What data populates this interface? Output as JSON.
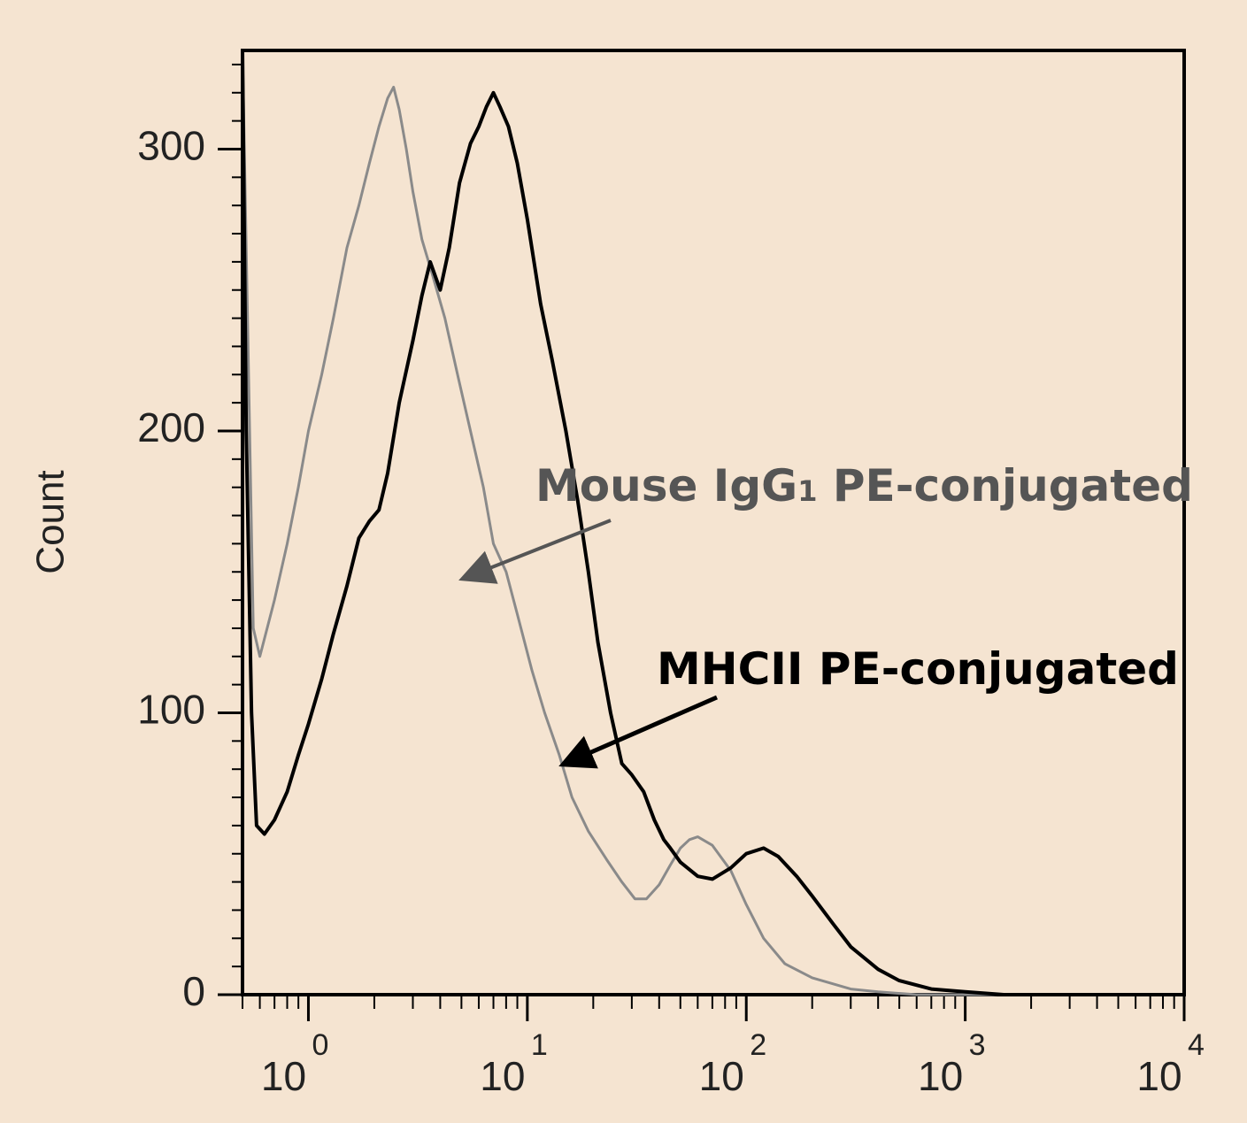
{
  "chart_data": {
    "type": "line",
    "title": "",
    "xlabel": "",
    "ylabel": "Count",
    "x_scale": "log",
    "xlim": [
      0.5,
      10000
    ],
    "ylim": [
      0,
      335
    ],
    "y_ticks": [
      0,
      100,
      200,
      300
    ],
    "x_ticks": [
      {
        "value": 1,
        "base": "10",
        "exp": "0"
      },
      {
        "value": 10,
        "base": "10",
        "exp": "1"
      },
      {
        "value": 100,
        "base": "10",
        "exp": "2"
      },
      {
        "value": 1000,
        "base": "10",
        "exp": "3"
      },
      {
        "value": 10000,
        "base": "10",
        "exp": "4"
      }
    ],
    "series": [
      {
        "name": "Mouse IgG1 PE-conjugated",
        "label_main": "Mouse IgG",
        "label_sub": "1",
        "label_rest": " PE-conjugated",
        "color": "#8a8a8a",
        "points": [
          [
            0.5,
            335
          ],
          [
            0.53,
            230
          ],
          [
            0.56,
            130
          ],
          [
            0.6,
            120
          ],
          [
            0.7,
            140
          ],
          [
            0.8,
            160
          ],
          [
            0.9,
            180
          ],
          [
            1.0,
            200
          ],
          [
            1.15,
            220
          ],
          [
            1.3,
            240
          ],
          [
            1.5,
            265
          ],
          [
            1.7,
            280
          ],
          [
            1.9,
            295
          ],
          [
            2.1,
            308
          ],
          [
            2.3,
            318
          ],
          [
            2.45,
            322
          ],
          [
            2.6,
            314
          ],
          [
            2.8,
            300
          ],
          [
            3.0,
            285
          ],
          [
            3.3,
            268
          ],
          [
            3.7,
            255
          ],
          [
            4.2,
            240
          ],
          [
            4.8,
            220
          ],
          [
            5.5,
            200
          ],
          [
            6.3,
            180
          ],
          [
            7.0,
            160
          ],
          [
            8.0,
            150
          ],
          [
            9.0,
            135
          ],
          [
            10.5,
            115
          ],
          [
            12,
            100
          ],
          [
            14,
            85
          ],
          [
            16,
            70
          ],
          [
            19,
            58
          ],
          [
            23,
            48
          ],
          [
            27,
            40
          ],
          [
            31,
            34
          ],
          [
            35,
            34
          ],
          [
            40,
            39
          ],
          [
            45,
            46
          ],
          [
            50,
            52
          ],
          [
            55,
            55
          ],
          [
            60,
            56
          ],
          [
            70,
            53
          ],
          [
            85,
            44
          ],
          [
            100,
            32
          ],
          [
            120,
            20
          ],
          [
            150,
            11
          ],
          [
            200,
            6
          ],
          [
            300,
            2
          ],
          [
            400,
            1
          ],
          [
            600,
            0
          ],
          [
            10000,
            0
          ]
        ]
      },
      {
        "name": "MHCII PE-conjugated",
        "label_main": "MHCII PE-conjugated",
        "color": "#000000",
        "points": [
          [
            0.5,
            335
          ],
          [
            0.52,
            200
          ],
          [
            0.55,
            100
          ],
          [
            0.58,
            60
          ],
          [
            0.63,
            57
          ],
          [
            0.7,
            62
          ],
          [
            0.8,
            72
          ],
          [
            0.9,
            85
          ],
          [
            1.0,
            96
          ],
          [
            1.15,
            112
          ],
          [
            1.3,
            128
          ],
          [
            1.5,
            145
          ],
          [
            1.7,
            162
          ],
          [
            1.9,
            168
          ],
          [
            2.1,
            172
          ],
          [
            2.3,
            185
          ],
          [
            2.6,
            210
          ],
          [
            3.0,
            232
          ],
          [
            3.3,
            248
          ],
          [
            3.6,
            260
          ],
          [
            4.0,
            250
          ],
          [
            4.4,
            265
          ],
          [
            4.9,
            288
          ],
          [
            5.5,
            302
          ],
          [
            6.0,
            308
          ],
          [
            6.5,
            315
          ],
          [
            7.0,
            320
          ],
          [
            7.5,
            315
          ],
          [
            8.2,
            308
          ],
          [
            9.0,
            295
          ],
          [
            10.0,
            275
          ],
          [
            11.5,
            245
          ],
          [
            13,
            225
          ],
          [
            15,
            200
          ],
          [
            17,
            175
          ],
          [
            19,
            150
          ],
          [
            21,
            125
          ],
          [
            24,
            100
          ],
          [
            27,
            82
          ],
          [
            30,
            78
          ],
          [
            34,
            72
          ],
          [
            38,
            62
          ],
          [
            42,
            55
          ],
          [
            45,
            52
          ],
          [
            50,
            47
          ],
          [
            60,
            42
          ],
          [
            70,
            41
          ],
          [
            85,
            45
          ],
          [
            100,
            50
          ],
          [
            120,
            52
          ],
          [
            140,
            49
          ],
          [
            170,
            42
          ],
          [
            200,
            35
          ],
          [
            250,
            25
          ],
          [
            300,
            17
          ],
          [
            400,
            9
          ],
          [
            500,
            5
          ],
          [
            700,
            2
          ],
          [
            1000,
            1
          ],
          [
            1500,
            0
          ],
          [
            10000,
            0
          ]
        ]
      }
    ]
  }
}
